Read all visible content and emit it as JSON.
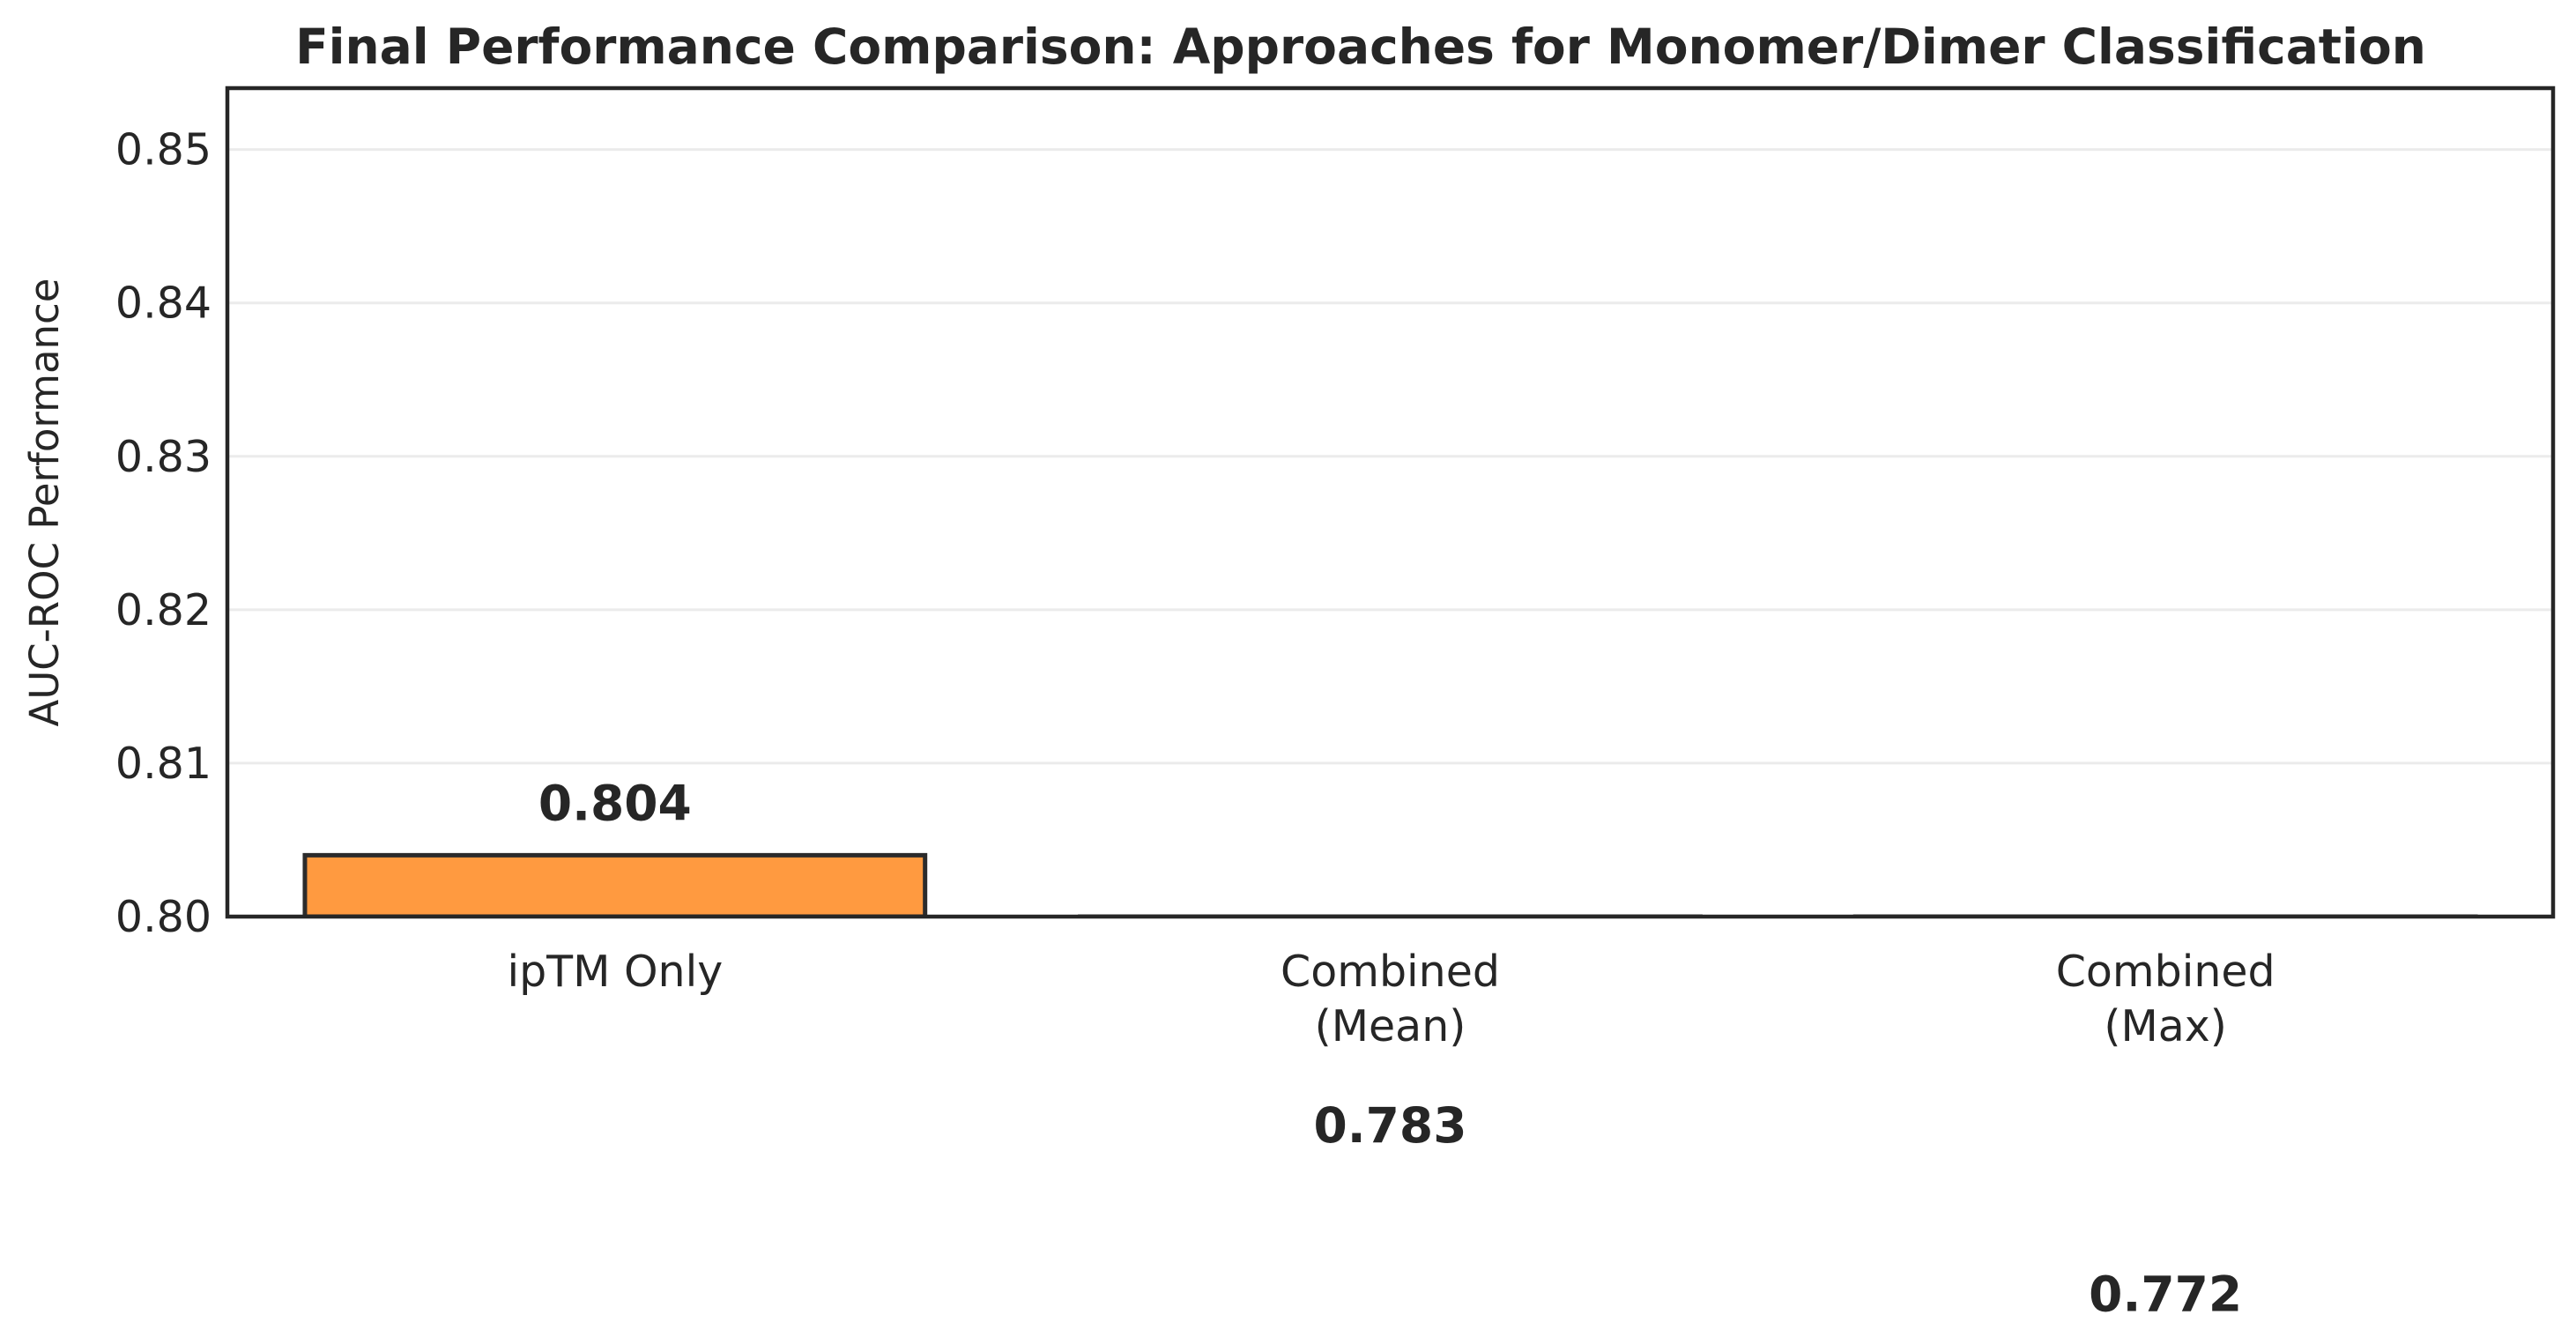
{
  "chart_data": {
    "type": "bar",
    "title": "Final Performance Comparison: Approaches for Monomer/Dimer Classification",
    "xlabel": "",
    "ylabel": "AUC-ROC Performance",
    "ylim": [
      0.8,
      0.854
    ],
    "yticks": [
      0.8,
      0.81,
      0.82,
      0.83,
      0.84,
      0.85
    ],
    "ytick_labels": [
      "0.80",
      "0.81",
      "0.82",
      "0.83",
      "0.84",
      "0.85"
    ],
    "categories": [
      [
        "ipTM Only"
      ],
      [
        "Combined",
        "(Mean)"
      ],
      [
        "Combined",
        "(Max)"
      ]
    ],
    "values": [
      0.804,
      0.783,
      0.772
    ],
    "value_labels": [
      "0.804",
      "0.783",
      "0.772"
    ],
    "bar_color": "#ff9a40",
    "edge_color": "#2b2b2b",
    "grid": true,
    "legend": "none"
  }
}
